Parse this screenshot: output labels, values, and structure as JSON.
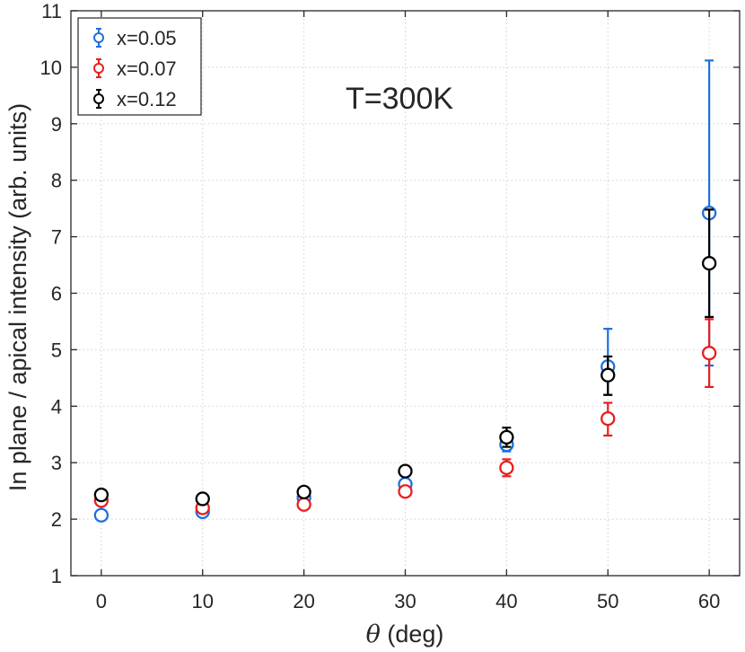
{
  "chart_data": {
    "type": "scatter",
    "annotation": "T=300K",
    "ylabel": "In plane / apical intensity (arb. units)",
    "xlabel_symbol": "θ",
    "xlabel_rest": " (deg)",
    "xlim": [
      -3,
      63
    ],
    "ylim": [
      1,
      11
    ],
    "xticks": [
      0,
      10,
      20,
      30,
      40,
      50,
      60
    ],
    "yticks": [
      1,
      2,
      3,
      4,
      5,
      6,
      7,
      8,
      9,
      10,
      11
    ],
    "grid": true,
    "legend_position": "top-left",
    "series": [
      {
        "name": "x=0.05",
        "color": "#1f6fde",
        "x": [
          0,
          10,
          20,
          30,
          40,
          50,
          60
        ],
        "y": [
          2.07,
          2.13,
          2.38,
          2.62,
          3.32,
          4.7,
          7.42
        ],
        "yerr_low": [
          0.05,
          0.05,
          0.05,
          0.07,
          0.12,
          0.5,
          2.7
        ],
        "yerr_high": [
          0.05,
          0.05,
          0.05,
          0.07,
          0.12,
          0.67,
          2.7
        ]
      },
      {
        "name": "x=0.07",
        "color": "#e81e1e",
        "x": [
          0,
          10,
          20,
          30,
          40,
          50,
          60
        ],
        "y": [
          2.33,
          2.2,
          2.26,
          2.49,
          2.91,
          3.78,
          4.94
        ],
        "yerr_low": [
          0.05,
          0.05,
          0.05,
          0.05,
          0.15,
          0.3,
          0.6
        ],
        "yerr_high": [
          0.05,
          0.05,
          0.05,
          0.05,
          0.15,
          0.28,
          0.6
        ]
      },
      {
        "name": "x=0.12",
        "color": "#000000",
        "x": [
          0,
          10,
          20,
          30,
          40,
          50,
          60
        ],
        "y": [
          2.43,
          2.36,
          2.48,
          2.85,
          3.45,
          4.55,
          6.53
        ],
        "yerr_low": [
          0.05,
          0.05,
          0.05,
          0.07,
          0.17,
          0.35,
          0.95
        ],
        "yerr_high": [
          0.05,
          0.05,
          0.05,
          0.07,
          0.17,
          0.33,
          0.95
        ]
      }
    ]
  }
}
